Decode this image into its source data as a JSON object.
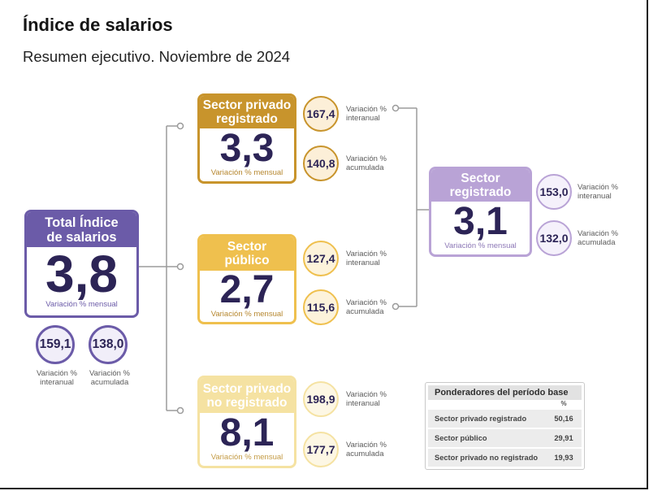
{
  "header": {
    "title": "Índice de salarios",
    "subtitle": "Resumen ejecutivo. Noviembre de 2024"
  },
  "colors": {
    "total": {
      "accent": "#6b5ba8",
      "tint": "#f1eef9",
      "caption": "#6b5ba8"
    },
    "privado_registrado": {
      "accent": "#c8942c",
      "tint": "#fcefd8",
      "caption": "#b6872f"
    },
    "publico": {
      "accent": "#efc04e",
      "tint": "#fdf3db",
      "caption": "#b6872f"
    },
    "privado_no_registrado": {
      "accent": "#f5e2a2",
      "tint": "#fdf7e4",
      "caption": "#c49b45"
    },
    "registrado": {
      "accent": "#b9a3d6",
      "tint": "#f5f1fb",
      "caption": "#8c77b6"
    },
    "value_text": "#2c2456",
    "connector": "#9b9b9b"
  },
  "total": {
    "title": "Total Índice\nde salarios",
    "value": "3,8",
    "caption": "Variación % mensual",
    "interanual": {
      "value": "159,1",
      "label": "Variación %\ninteranual"
    },
    "acumulada": {
      "value": "138,0",
      "label": "Variación %\nacumulada"
    }
  },
  "sectors": [
    {
      "title": "Sector privado\nregistrado",
      "value": "3,3",
      "caption": "Variación % mensual",
      "interanual": {
        "value": "167,4",
        "label": "Variación %\ninteranual"
      },
      "acumulada": {
        "value": "140,8",
        "label": "Variación %\nacumulada"
      }
    },
    {
      "title": "Sector\npúblico",
      "value": "2,7",
      "caption": "Variación % mensual",
      "interanual": {
        "value": "127,4",
        "label": "Variación %\ninteranual"
      },
      "acumulada": {
        "value": "115,6",
        "label": "Variación %\nacumulada"
      }
    },
    {
      "title": "Sector privado\nno registrado",
      "value": "8,1",
      "caption": "Variación % mensual",
      "interanual": {
        "value": "198,9",
        "label": "Variación %\ninteranual"
      },
      "acumulada": {
        "value": "177,7",
        "label": "Variación %\nacumulada"
      }
    },
    {
      "title": "Sector\nregistrado",
      "value": "3,1",
      "caption": "Variación % mensual",
      "interanual": {
        "value": "153,0",
        "label": "Variación %\ninteranual"
      },
      "acumulada": {
        "value": "132,0",
        "label": "Variación %\nacumulada"
      }
    }
  ],
  "ponderadores": {
    "title": "Ponderadores del período base",
    "column_header": "%",
    "rows": [
      {
        "label": "Sector privado registrado",
        "value": "50,16"
      },
      {
        "label": "Sector público",
        "value": "29,91"
      },
      {
        "label": "Sector privado no registrado",
        "value": "19,93"
      }
    ]
  }
}
